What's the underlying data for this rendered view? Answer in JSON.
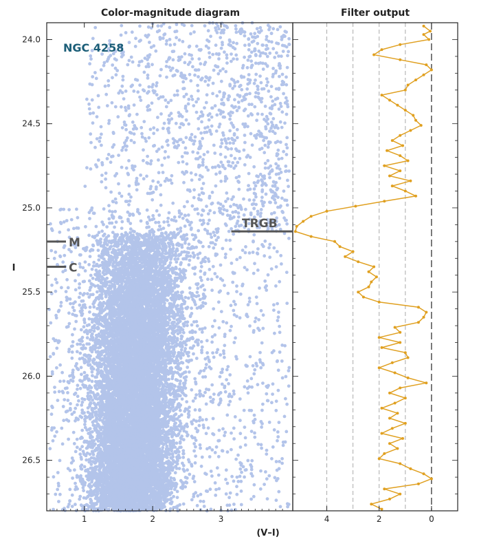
{
  "colors": {
    "stars": "#b3c4ea",
    "filter_line": "#e0a020",
    "marker": "#555555",
    "galaxy_label": "#1b5e78",
    "axis": "#222222",
    "grid": "#aaaaaa"
  },
  "chart_data": [
    {
      "id": "cmd",
      "type": "scatter",
      "title": "Color-magnitude diagram",
      "xlabel": "(V–I)",
      "ylabel": "I",
      "xlim": [
        0.45,
        4.05
      ],
      "ylim": [
        26.8,
        23.9
      ],
      "y_inverted": true,
      "xticks": [
        1,
        2,
        3
      ],
      "xtick_labels": [
        "1",
        "2",
        "3"
      ],
      "yticks": [
        24.0,
        24.5,
        25.0,
        25.5,
        26.0,
        26.5
      ],
      "ytick_labels": [
        "24.0",
        "24.5",
        "25.0",
        "25.5",
        "26.0",
        "26.5"
      ],
      "annotations": {
        "galaxy": "NGC 4258",
        "trgb": {
          "label": "TRGB",
          "I": 25.14,
          "x_start": 3.15,
          "x_end": 4.05
        },
        "m_marker": {
          "label": "M",
          "I": 25.2
        },
        "c_marker": {
          "label": "C",
          "I": 25.35
        }
      },
      "point_distribution": {
        "description": "Dense red giant branch below the TRGB (I > 25.14) centered near V–I ≈ 1.9, sparse field above",
        "total_points_approx": 14000
      }
    },
    {
      "id": "filter",
      "type": "line",
      "title": "Filter output",
      "xlim": [
        5.3,
        -1.0
      ],
      "x_inverted": true,
      "xticks": [
        4,
        2,
        0
      ],
      "xtick_labels": [
        "4",
        "2",
        "0"
      ],
      "gridlines_x": [
        4,
        3,
        2,
        1,
        -1
      ],
      "zero_line": 0,
      "series": [
        {
          "points": [
            [
              23.92,
              0.3
            ],
            [
              23.95,
              0.05
            ],
            [
              23.97,
              0.3
            ],
            [
              24.0,
              0.1
            ],
            [
              24.03,
              1.2
            ],
            [
              24.06,
              1.9
            ],
            [
              24.09,
              2.2
            ],
            [
              24.12,
              1.2
            ],
            [
              24.15,
              0.2
            ],
            [
              24.18,
              0.0
            ],
            [
              24.21,
              0.3
            ],
            [
              24.24,
              0.6
            ],
            [
              24.27,
              0.9
            ],
            [
              24.3,
              1.0
            ],
            [
              24.33,
              1.9
            ],
            [
              24.36,
              1.6
            ],
            [
              24.39,
              1.3
            ],
            [
              24.42,
              1.0
            ],
            [
              24.45,
              0.7
            ],
            [
              24.48,
              0.6
            ],
            [
              24.51,
              0.4
            ],
            [
              24.54,
              0.8
            ],
            [
              24.57,
              1.2
            ],
            [
              24.6,
              1.5
            ],
            [
              24.63,
              1.1
            ],
            [
              24.66,
              1.7
            ],
            [
              24.69,
              1.2
            ],
            [
              24.72,
              0.9
            ],
            [
              24.75,
              1.8
            ],
            [
              24.78,
              1.2
            ],
            [
              24.81,
              1.6
            ],
            [
              24.84,
              0.8
            ],
            [
              24.87,
              1.5
            ],
            [
              24.9,
              1.0
            ],
            [
              24.93,
              0.6
            ],
            [
              24.96,
              1.8
            ],
            [
              24.99,
              2.9
            ],
            [
              25.02,
              4.0
            ],
            [
              25.05,
              4.6
            ],
            [
              25.08,
              4.9
            ],
            [
              25.11,
              5.15
            ],
            [
              25.14,
              5.2
            ],
            [
              25.17,
              4.6
            ],
            [
              25.2,
              3.7
            ],
            [
              25.23,
              3.5
            ],
            [
              25.26,
              3.0
            ],
            [
              25.29,
              3.3
            ],
            [
              25.32,
              2.8
            ],
            [
              25.35,
              2.2
            ],
            [
              25.38,
              2.4
            ],
            [
              25.41,
              2.1
            ],
            [
              25.44,
              2.3
            ],
            [
              25.47,
              2.4
            ],
            [
              25.5,
              2.8
            ],
            [
              25.53,
              2.6
            ],
            [
              25.56,
              2.0
            ],
            [
              25.59,
              0.5
            ],
            [
              25.62,
              0.2
            ],
            [
              25.65,
              0.3
            ],
            [
              25.68,
              0.5
            ],
            [
              25.71,
              1.4
            ],
            [
              25.74,
              1.2
            ],
            [
              25.77,
              2.0
            ],
            [
              25.8,
              1.2
            ],
            [
              25.83,
              1.9
            ],
            [
              25.86,
              1.0
            ],
            [
              25.89,
              0.9
            ],
            [
              25.92,
              1.5
            ],
            [
              25.95,
              2.0
            ],
            [
              25.98,
              1.4
            ],
            [
              26.01,
              0.9
            ],
            [
              26.04,
              0.2
            ],
            [
              26.07,
              1.2
            ],
            [
              26.1,
              1.6
            ],
            [
              26.13,
              1.0
            ],
            [
              26.16,
              1.4
            ],
            [
              26.19,
              1.9
            ],
            [
              26.22,
              1.3
            ],
            [
              26.25,
              1.6
            ],
            [
              26.28,
              1.0
            ],
            [
              26.31,
              1.5
            ],
            [
              26.34,
              1.9
            ],
            [
              26.37,
              1.1
            ],
            [
              26.4,
              1.6
            ],
            [
              26.43,
              1.3
            ],
            [
              26.46,
              1.8
            ],
            [
              26.49,
              2.0
            ],
            [
              26.52,
              1.2
            ],
            [
              26.55,
              0.8
            ],
            [
              26.58,
              0.3
            ],
            [
              26.61,
              0.0
            ],
            [
              26.64,
              0.5
            ],
            [
              26.67,
              1.8
            ],
            [
              26.7,
              1.2
            ],
            [
              26.73,
              1.6
            ],
            [
              26.76,
              2.3
            ],
            [
              26.79,
              1.9
            ]
          ]
        }
      ]
    }
  ]
}
